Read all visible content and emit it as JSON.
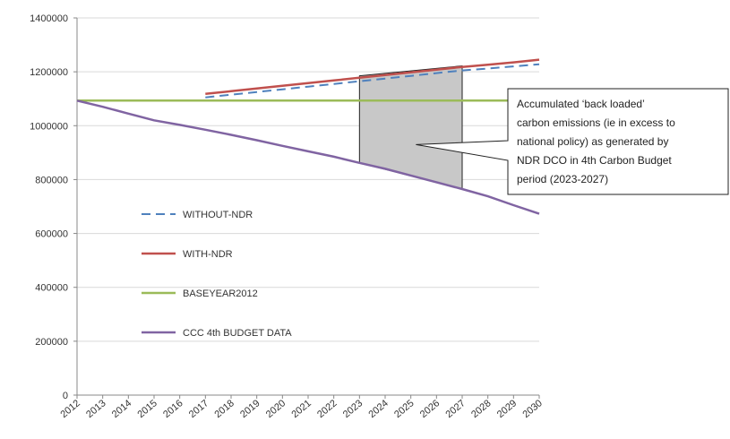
{
  "chart_data": {
    "type": "line",
    "x": [
      2012,
      2013,
      2014,
      2015,
      2016,
      2017,
      2018,
      2019,
      2020,
      2021,
      2022,
      2023,
      2024,
      2025,
      2026,
      2027,
      2028,
      2029,
      2030
    ],
    "x_tick_labels": [
      "2012",
      "2013",
      "2014",
      "2015",
      "2016",
      "2017",
      "2018",
      "2019",
      "2020",
      "2021",
      "2022",
      "2023",
      "2024",
      "2025",
      "2026",
      "2027",
      "2028",
      "2029",
      "2030"
    ],
    "ylim": [
      0,
      1400000
    ],
    "y_tick_labels": [
      "0",
      "200000",
      "400000",
      "600000",
      "800000",
      "1000000",
      "1200000",
      "1400000"
    ],
    "y_tick_values": [
      0,
      200000,
      400000,
      600000,
      800000,
      1000000,
      1200000,
      1400000
    ],
    "grid": "horizontal",
    "legend_position": "lower-left",
    "series": [
      {
        "name": "WITHOUT-NDR",
        "style": "dashed",
        "color": "#4f81bd",
        "x": [
          2017,
          2018,
          2019,
          2020,
          2021,
          2022,
          2023,
          2024,
          2025,
          2026,
          2027,
          2028,
          2029,
          2030
        ],
        "values": [
          1105000,
          1115000,
          1125000,
          1135000,
          1145000,
          1155000,
          1165000,
          1175000,
          1185000,
          1195000,
          1205000,
          1212000,
          1220000,
          1228000
        ]
      },
      {
        "name": "WITH-NDR",
        "style": "solid",
        "color": "#c0504d",
        "x": [
          2017,
          2018,
          2019,
          2020,
          2021,
          2022,
          2023,
          2024,
          2025,
          2026,
          2027,
          2028,
          2029,
          2030
        ],
        "values": [
          1118000,
          1128000,
          1138000,
          1148000,
          1158000,
          1168000,
          1178000,
          1188000,
          1198000,
          1208000,
          1218000,
          1226000,
          1235000,
          1245000
        ]
      },
      {
        "name": "BASEYEAR2012",
        "style": "solid",
        "color": "#9bbb59",
        "x": [
          2012,
          2030
        ],
        "values": [
          1093000,
          1093000
        ]
      },
      {
        "name": "CCC 4th BUDGET DATA",
        "style": "solid",
        "color": "#8064a2",
        "x": [
          2012,
          2013,
          2014,
          2015,
          2016,
          2017,
          2018,
          2019,
          2020,
          2021,
          2022,
          2023,
          2024,
          2025,
          2026,
          2027,
          2028,
          2029,
          2030
        ],
        "values": [
          1093000,
          1070000,
          1045000,
          1020000,
          1003000,
          985000,
          966000,
          946000,
          925000,
          905000,
          885000,
          862000,
          840000,
          815000,
          790000,
          765000,
          738000,
          705000,
          673000
        ]
      }
    ],
    "shaded_region": {
      "x_start": 2023,
      "x_end": 2027,
      "top": [
        1185000,
        1222000
      ],
      "bottom": [
        862000,
        765000
      ],
      "color": "#c8c8c8"
    },
    "annotation": {
      "lines": [
        "Accumulated ‘back loaded’",
        "carbon emissions (ie in excess to",
        "national policy) as generated by",
        "NDR DCO in 4th Carbon Budget",
        "period (2023-2027)"
      ],
      "points_to": {
        "x": 2025.2,
        "y": 930000
      }
    }
  }
}
